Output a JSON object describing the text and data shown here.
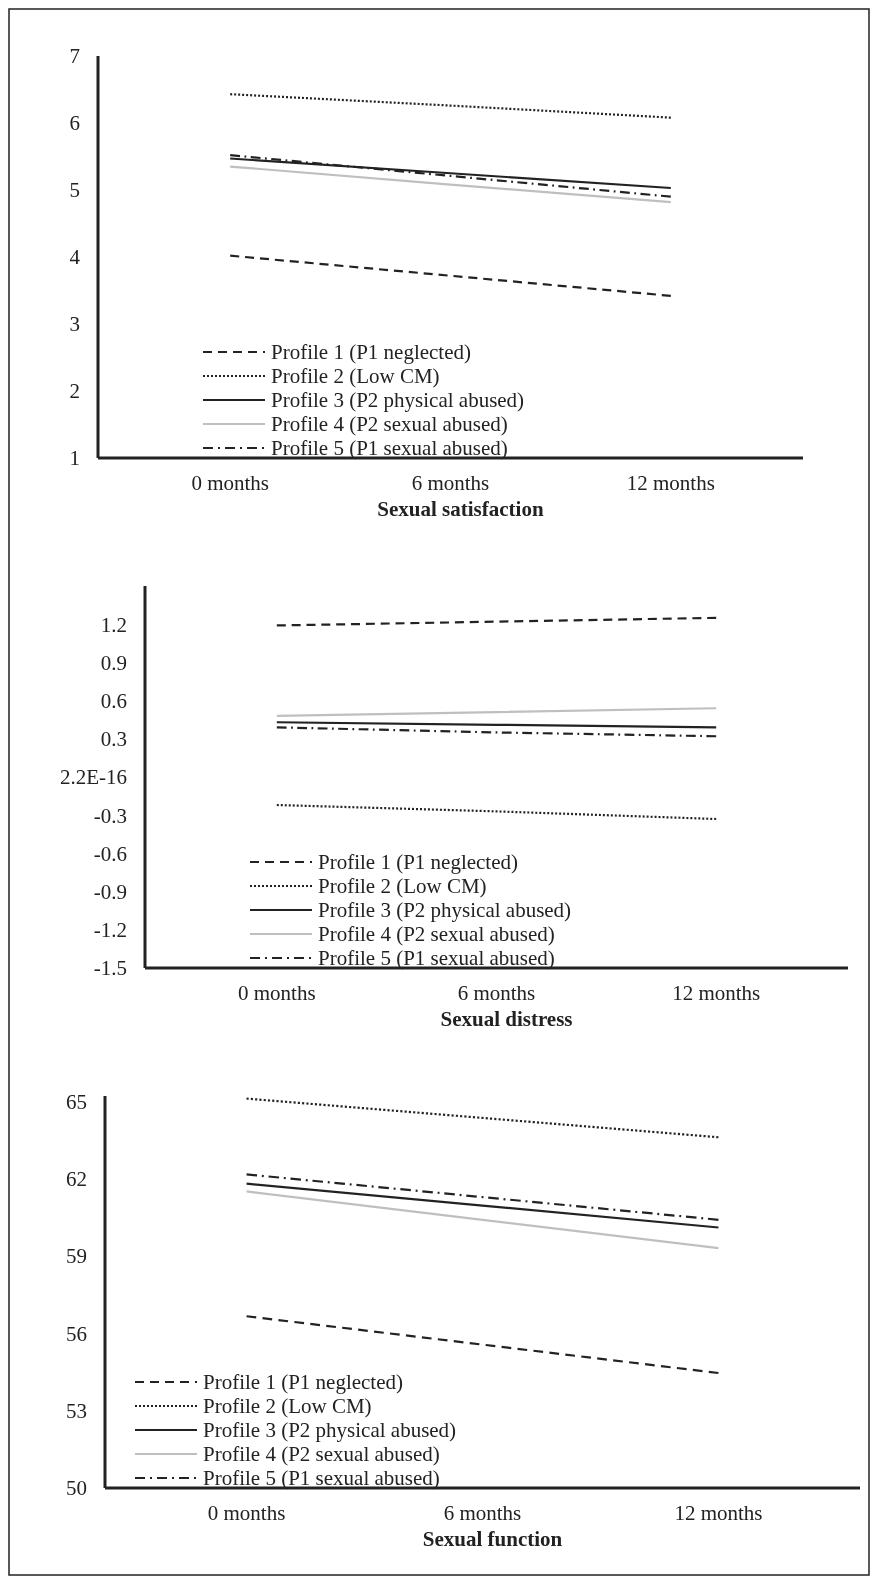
{
  "chart_data": [
    {
      "type": "line",
      "xlabel": "Sexual satisfaction",
      "categories": [
        "0 months",
        "6 months",
        "12 months"
      ],
      "ylim": [
        1,
        7
      ],
      "yticks": [
        1,
        2,
        3,
        4,
        5,
        6,
        7
      ],
      "grid": false,
      "legend": "bottom left",
      "marker": "none",
      "series": [
        {
          "name": "Profile 1 (P1 neglected)",
          "color": "#222222",
          "line_style": "dashed",
          "values": [
            4.02,
            3.72,
            3.42
          ]
        },
        {
          "name": "Profile 2 (Low CM)",
          "color": "#222222",
          "line_style": "dotted",
          "values": [
            6.43,
            6.26,
            6.08
          ]
        },
        {
          "name": "Profile 3 (P2 physical abused)",
          "color": "#222222",
          "line_style": "solid",
          "values": [
            5.47,
            5.25,
            5.03
          ]
        },
        {
          "name": "Profile 4 (P2 sexual abused)",
          "color": "#bfbfbf",
          "line_style": "solid",
          "values": [
            5.35,
            5.08,
            4.82
          ]
        },
        {
          "name": "Profile 5 (P1 sexual abused)",
          "color": "#222222",
          "line_style": "dashdot",
          "values": [
            5.52,
            5.21,
            4.9
          ]
        }
      ]
    },
    {
      "type": "line",
      "xlabel": "Sexual distress",
      "categories": [
        "0 months",
        "6 months",
        "12 months"
      ],
      "ylim": [
        -1.5,
        1.5
      ],
      "yticks": [
        -1.5,
        -1.2,
        -0.9,
        -0.6,
        -0.3,
        {
          "value": 0,
          "label": "2.2E-16"
        },
        0.3,
        0.6,
        0.9,
        1.2
      ],
      "grid": false,
      "legend": "bottom left",
      "marker": "none",
      "series": [
        {
          "name": "Profile 1 (P1 neglected)",
          "color": "#222222",
          "line_style": "dashed",
          "values": [
            1.19,
            1.22,
            1.25
          ]
        },
        {
          "name": "Profile 2 (Low CM)",
          "color": "#222222",
          "line_style": "dotted",
          "values": [
            -0.22,
            -0.27,
            -0.33
          ]
        },
        {
          "name": "Profile 3 (P2 physical abused)",
          "color": "#222222",
          "line_style": "solid",
          "values": [
            0.43,
            0.41,
            0.39
          ]
        },
        {
          "name": "Profile 4 (P2 sexual abused)",
          "color": "#bfbfbf",
          "line_style": "solid",
          "values": [
            0.48,
            0.51,
            0.54
          ]
        },
        {
          "name": "Profile 5 (P1 sexual abused)",
          "color": "#222222",
          "line_style": "dashdot",
          "values": [
            0.39,
            0.35,
            0.32
          ]
        }
      ]
    },
    {
      "type": "line",
      "xlabel": "Sexual function",
      "categories": [
        "0 months",
        "6 months",
        "12 months"
      ],
      "ylim": [
        50,
        65.2
      ],
      "yticks": [
        50,
        53,
        56,
        59,
        62,
        65
      ],
      "grid": false,
      "legend": "bottom left",
      "marker": "none",
      "series": [
        {
          "name": "Profile 1 (P1 neglected)",
          "color": "#222222",
          "line_style": "dashed",
          "values": [
            56.66,
            55.56,
            54.46
          ]
        },
        {
          "name": "Profile 2 (Low CM)",
          "color": "#222222",
          "line_style": "dotted",
          "values": [
            65.1,
            64.35,
            63.6
          ]
        },
        {
          "name": "Profile 3 (P2 physical abused)",
          "color": "#222222",
          "line_style": "solid",
          "values": [
            61.8,
            60.95,
            60.1
          ]
        },
        {
          "name": "Profile 4 (P2 sexual abused)",
          "color": "#bfbfbf",
          "line_style": "solid",
          "values": [
            61.5,
            60.4,
            59.3
          ]
        },
        {
          "name": "Profile 5 (P1 sexual abused)",
          "color": "#222222",
          "line_style": "dashdot",
          "values": [
            62.16,
            61.28,
            60.4
          ]
        }
      ]
    }
  ]
}
